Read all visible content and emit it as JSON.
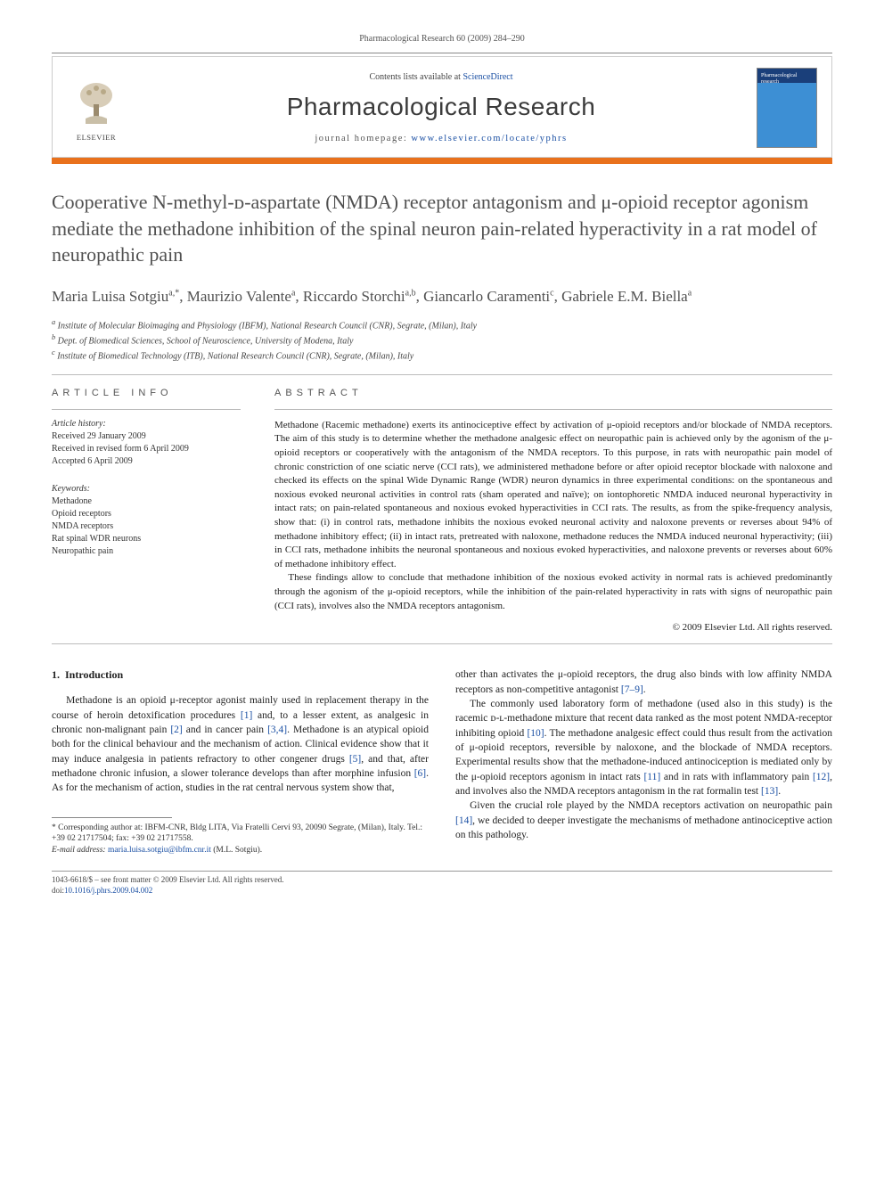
{
  "running_head": "Pharmacological Research 60 (2009) 284–290",
  "header": {
    "contents_prefix": "Contents lists available at ",
    "contents_link": "ScienceDirect",
    "journal_title": "Pharmacological Research",
    "homepage_prefix": "journal homepage: ",
    "homepage_url": "www.elsevier.com/locate/yphrs",
    "elsevier_label": "ELSEVIER",
    "cover_text": "Pharmacological research"
  },
  "article": {
    "title": "Cooperative N-methyl-ᴅ-aspartate (NMDA) receptor antagonism and μ-opioid receptor agonism mediate the methadone inhibition of the spinal neuron pain-related hyperactivity in a rat model of neuropathic pain",
    "authors_html": "Maria Luisa Sotgiu<sup>a,*</sup>, Maurizio Valente<sup>a</sup>, Riccardo Storchi<sup>a,b</sup>, Giancarlo Caramenti<sup>c</sup>, Gabriele E.M. Biella<sup>a</sup>",
    "affiliations": {
      "a": "Institute of Molecular Bioimaging and Physiology (IBFM), National Research Council (CNR), Segrate, (Milan), Italy",
      "b": "Dept. of Biomedical Sciences, School of Neuroscience, University of Modena, Italy",
      "c": "Institute of Biomedical Technology (ITB), National Research Council (CNR), Segrate, (Milan), Italy"
    }
  },
  "article_info": {
    "label": "ARTICLE INFO",
    "history_label": "Article history:",
    "received": "Received 29 January 2009",
    "revised": "Received in revised form 6 April 2009",
    "accepted": "Accepted 6 April 2009",
    "keywords_label": "Keywords:",
    "keywords": [
      "Methadone",
      "Opioid receptors",
      "NMDA receptors",
      "Rat spinal WDR neurons",
      "Neuropathic pain"
    ]
  },
  "abstract": {
    "label": "ABSTRACT",
    "p1": "Methadone (Racemic methadone) exerts its antinociceptive effect by activation of μ-opioid receptors and/or blockade of NMDA receptors. The aim of this study is to determine whether the methadone analgesic effect on neuropathic pain is achieved only by the agonism of the μ-opioid receptors or cooperatively with the antagonism of the NMDA receptors. To this purpose, in rats with neuropathic pain model of chronic constriction of one sciatic nerve (CCI rats), we administered methadone before or after opioid receptor blockade with naloxone and checked its effects on the spinal Wide Dynamic Range (WDR) neuron dynamics in three experimental conditions: on the spontaneous and noxious evoked neuronal activities in control rats (sham operated and naïve); on iontophoretic NMDA induced neuronal hyperactivity in intact rats; on pain-related spontaneous and noxious evoked hyperactivities in CCI rats. The results, as from the spike-frequency analysis, show that: (i) in control rats, methadone inhibits the noxious evoked neuronal activity and naloxone prevents or reverses about 94% of methadone inhibitory effect; (ii) in intact rats, pretreated with naloxone, methadone reduces the NMDA induced neuronal hyperactivity; (iii) in CCI rats, methadone inhibits the neuronal spontaneous and noxious evoked hyperactivities, and naloxone prevents or reverses about 60% of methadone inhibitory effect.",
    "p2": "These findings allow to conclude that methadone inhibition of the noxious evoked activity in normal rats is achieved predominantly through the agonism of the μ-opioid receptors, while the inhibition of the pain-related hyperactivity in rats with signs of neuropathic pain (CCI rats), involves also the NMDA receptors antagonism.",
    "copyright": "© 2009 Elsevier Ltd. All rights reserved."
  },
  "body": {
    "section_number": "1.",
    "section_title": "Introduction",
    "col1_p1_a": "Methadone is an opioid μ-receptor agonist mainly used in replacement therapy in the course of heroin detoxification procedures ",
    "col1_p1_ref1": "[1]",
    "col1_p1_b": " and, to a lesser extent, as analgesic in chronic non-malignant pain ",
    "col1_p1_ref2": "[2]",
    "col1_p1_c": " and in cancer pain ",
    "col1_p1_ref3": "[3,4]",
    "col1_p1_d": ". Methadone is an atypical opioid both for the clinical behaviour and the mechanism of action. Clinical evidence show that it may induce analgesia in patients refractory to other congener drugs ",
    "col1_p1_ref5": "[5]",
    "col1_p1_e": ", and that, after methadone chronic infusion, a slower tolerance develops than after morphine infusion ",
    "col1_p1_ref6": "[6]",
    "col1_p1_f": ". As for the mechanism of action, studies in the rat central nervous system show that,",
    "col2_p1_a": "other than activates the μ-opioid receptors, the drug also binds with low affinity NMDA receptors as non-competitive antagonist ",
    "col2_p1_ref79": "[7–9]",
    "col2_p1_b": ".",
    "col2_p2_a": "The commonly used laboratory form of methadone (used also in this study) is the racemic ᴅ-ʟ-methadone mixture that recent data ranked as the most potent NMDA-receptor inhibiting opioid ",
    "col2_p2_ref10": "[10]",
    "col2_p2_b": ". The methadone analgesic effect could thus result from the activation of μ-opioid receptors, reversible by naloxone, and the blockade of NMDA receptors. Experimental results show that the methadone-induced antinociception is mediated only by the μ-opioid receptors agonism in intact rats ",
    "col2_p2_ref11": "[11]",
    "col2_p2_c": " and in rats with inflammatory pain ",
    "col2_p2_ref12": "[12]",
    "col2_p2_d": ", and involves also the NMDA receptors antagonism in the rat formalin test ",
    "col2_p2_ref13": "[13]",
    "col2_p2_e": ".",
    "col2_p3_a": "Given the crucial role played by the NMDA receptors activation on neuropathic pain ",
    "col2_p3_ref14": "[14]",
    "col2_p3_b": ", we decided to deeper investigate the mechanisms of methadone antinociceptive action on this pathology."
  },
  "footnote": {
    "corresponding": "* Corresponding author at: IBFM-CNR, Bldg LITA, Via Fratelli Cervi 93, 20090 Segrate, (Milan), Italy. Tel.: +39 02 21717504; fax: +39 02 21717558.",
    "email_label": "E-mail address: ",
    "email": "maria.luisa.sotgiu@ibfm.cnr.it",
    "email_suffix": " (M.L. Sotgiu)."
  },
  "footer": {
    "line1": "1043-6618/$ – see front matter © 2009 Elsevier Ltd. All rights reserved.",
    "doi_label": "doi:",
    "doi": "10.1016/j.phrs.2009.04.002"
  },
  "colors": {
    "orange": "#e9711c",
    "link": "#1a4fa3",
    "text_grey": "#505050"
  }
}
